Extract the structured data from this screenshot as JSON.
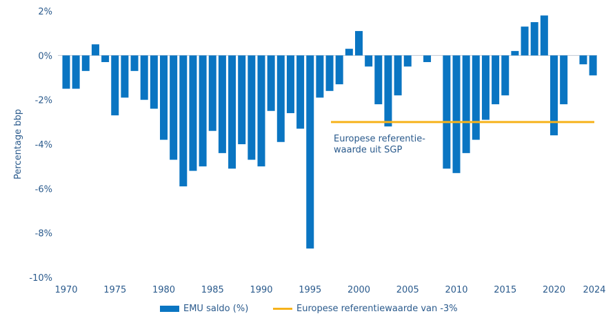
{
  "chart_data": {
    "type": "bar",
    "ylabel": "Percentage bbp",
    "ylim": [
      -10,
      2
    ],
    "yticks": [
      "2%",
      "0%",
      "-2%",
      "-4%",
      "-6%",
      "-8%",
      "-10%"
    ],
    "ytick_values": [
      2,
      0,
      -2,
      -4,
      -6,
      -8,
      -10
    ],
    "xticks": [
      "1970",
      "1975",
      "1980",
      "1985",
      "1990",
      "1995",
      "2000",
      "2005",
      "2010",
      "2015",
      "2020",
      "2024"
    ],
    "x_first": 1970,
    "x_last": 2024,
    "grid": false,
    "legend_position": "bottom",
    "series": [
      {
        "name": "EMU saldo (%)",
        "color": "#0a75c2",
        "type": "bar",
        "points": [
          {
            "x": 1970,
            "y": -1.5
          },
          {
            "x": 1971,
            "y": -1.5
          },
          {
            "x": 1972,
            "y": -0.7
          },
          {
            "x": 1973,
            "y": 0.5
          },
          {
            "x": 1974,
            "y": -0.3
          },
          {
            "x": 1975,
            "y": -2.7
          },
          {
            "x": 1976,
            "y": -1.9
          },
          {
            "x": 1977,
            "y": -0.7
          },
          {
            "x": 1978,
            "y": -2.0
          },
          {
            "x": 1979,
            "y": -2.4
          },
          {
            "x": 1980,
            "y": -3.8
          },
          {
            "x": 1981,
            "y": -4.7
          },
          {
            "x": 1982,
            "y": -5.9
          },
          {
            "x": 1983,
            "y": -5.2
          },
          {
            "x": 1984,
            "y": -5.0
          },
          {
            "x": 1985,
            "y": -3.4
          },
          {
            "x": 1986,
            "y": -4.4
          },
          {
            "x": 1987,
            "y": -5.1
          },
          {
            "x": 1988,
            "y": -4.0
          },
          {
            "x": 1989,
            "y": -4.7
          },
          {
            "x": 1990,
            "y": -5.0
          },
          {
            "x": 1991,
            "y": -2.5
          },
          {
            "x": 1992,
            "y": -3.9
          },
          {
            "x": 1993,
            "y": -2.6
          },
          {
            "x": 1994,
            "y": -3.3
          },
          {
            "x": 1995,
            "y": -8.7
          },
          {
            "x": 1996,
            "y": -1.9
          },
          {
            "x": 1997,
            "y": -1.6
          },
          {
            "x": 1998,
            "y": -1.3
          },
          {
            "x": 1999,
            "y": 0.3
          },
          {
            "x": 2000,
            "y": 1.1
          },
          {
            "x": 2001,
            "y": -0.5
          },
          {
            "x": 2002,
            "y": -2.2
          },
          {
            "x": 2003,
            "y": -3.2
          },
          {
            "x": 2004,
            "y": -1.8
          },
          {
            "x": 2005,
            "y": -0.5
          },
          {
            "x": 2006,
            "y": 0.0
          },
          {
            "x": 2007,
            "y": -0.3
          },
          {
            "x": 2008,
            "y": 0.0
          },
          {
            "x": 2009,
            "y": -5.1
          },
          {
            "x": 2010,
            "y": -5.3
          },
          {
            "x": 2011,
            "y": -4.4
          },
          {
            "x": 2012,
            "y": -3.8
          },
          {
            "x": 2013,
            "y": -2.9
          },
          {
            "x": 2014,
            "y": -2.2
          },
          {
            "x": 2015,
            "y": -1.8
          },
          {
            "x": 2016,
            "y": 0.2
          },
          {
            "x": 2017,
            "y": 1.3
          },
          {
            "x": 2018,
            "y": 1.5
          },
          {
            "x": 2019,
            "y": 1.8
          },
          {
            "x": 2020,
            "y": -3.6
          },
          {
            "x": 2021,
            "y": -2.2
          },
          {
            "x": 2022,
            "y": 0.0
          },
          {
            "x": 2023,
            "y": -0.4
          },
          {
            "x": 2024,
            "y": -0.9
          }
        ]
      },
      {
        "name": "Europese referentiewaarde van -3%",
        "color": "#f6b21b",
        "type": "line",
        "value": -3,
        "x_start": 1997,
        "x_end": 2024
      }
    ],
    "annotations": [
      {
        "lines": [
          "Europese referentie-",
          "waarde uit SGP"
        ]
      }
    ]
  }
}
